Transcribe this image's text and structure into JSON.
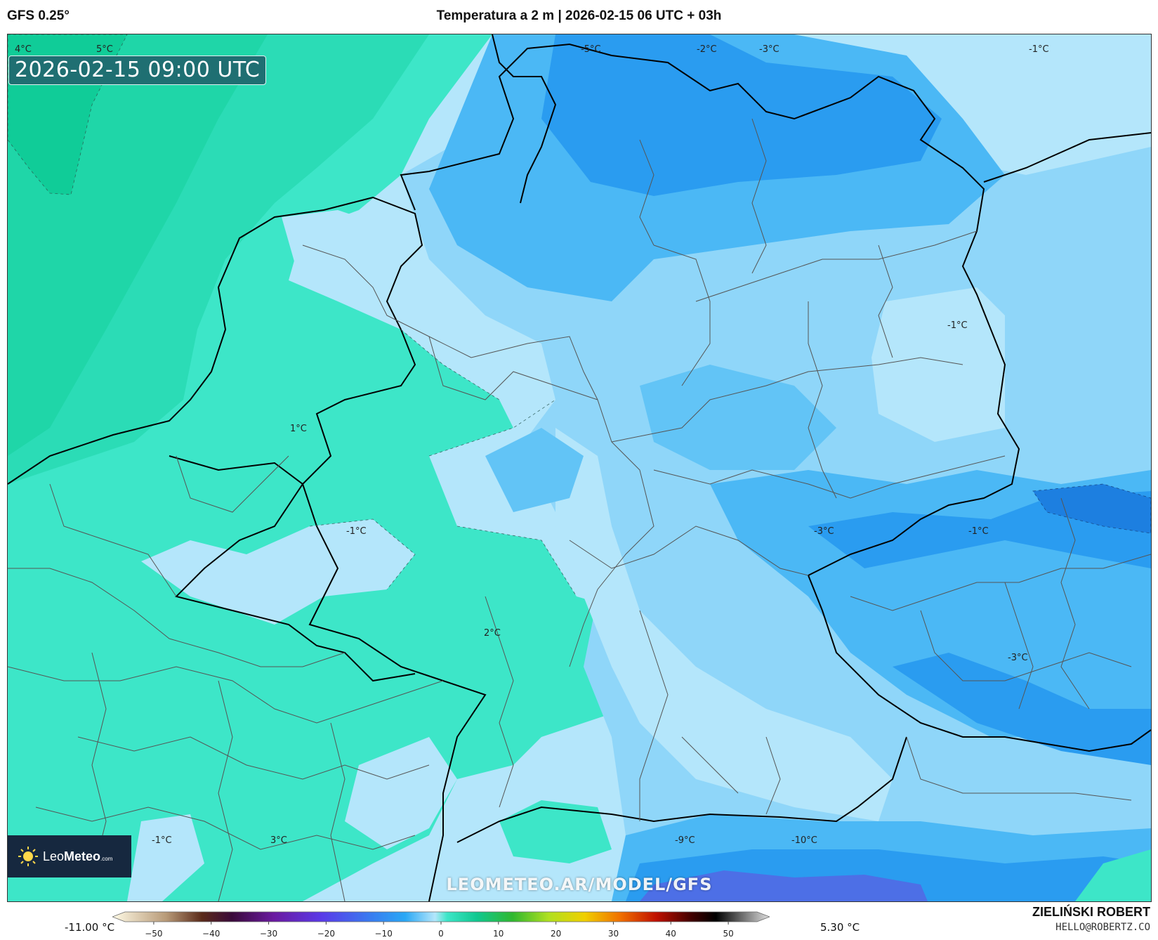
{
  "header": {
    "model": "GFS 0.25°",
    "title": "Temperatura a 2 m | 2026-02-15 06 UTC + 03h"
  },
  "map": {
    "valid_time": "2026-02-15 09:00 UTC",
    "watermark": "LEOMETEO.AR/MODEL/GFS",
    "logo": {
      "name_light": "Leo",
      "name_bold": "Meteo",
      "suffix": ".com",
      "icon": "sun-icon"
    },
    "temperature_labels": [
      {
        "text": "4°C"
      },
      {
        "text": "5°C"
      },
      {
        "text": "-5°C"
      },
      {
        "text": "-2°C"
      },
      {
        "text": "-3°C"
      },
      {
        "text": "-1°C"
      },
      {
        "text": "-1°C"
      },
      {
        "text": "1°C"
      },
      {
        "text": "-1°C"
      },
      {
        "text": "-3°C"
      },
      {
        "text": "-1°C"
      },
      {
        "text": "2°C"
      },
      {
        "text": "-3°C"
      },
      {
        "text": "-1°C"
      },
      {
        "text": "3°C"
      },
      {
        "text": "-9°C"
      },
      {
        "text": "-10°C"
      }
    ],
    "colors": {
      "sea_green": "#1fd6a8",
      "land_green": "#3de6c8",
      "pale_blue": "#b4e6fb",
      "light_blue": "#7fd0f8",
      "mid_blue": "#4bb8f5",
      "deep_blue": "#2a9cf0",
      "violet": "#5a6ee8"
    }
  },
  "colorbar": {
    "min_label": "-11.00 °C",
    "max_label": "5.30 °C",
    "ticks": [
      "−50",
      "−40",
      "−30",
      "−20",
      "−10",
      "0",
      "10",
      "20",
      "30",
      "40",
      "50"
    ],
    "range": [
      -55,
      55
    ],
    "stops": [
      {
        "t": -55,
        "color": "#fffbe6"
      },
      {
        "t": -46,
        "color": "#b89a78"
      },
      {
        "t": -40,
        "color": "#5a2a1a"
      },
      {
        "t": -35,
        "color": "#3a0a3a"
      },
      {
        "t": -28,
        "color": "#6a1aa0"
      },
      {
        "t": -20,
        "color": "#5a3ae8"
      },
      {
        "t": -12,
        "color": "#3a7af0"
      },
      {
        "t": -6,
        "color": "#2aa8f5"
      },
      {
        "t": -1,
        "color": "#b4e6fb"
      },
      {
        "t": 1,
        "color": "#3de6c8"
      },
      {
        "t": 6,
        "color": "#10c890"
      },
      {
        "t": 12,
        "color": "#30b830"
      },
      {
        "t": 18,
        "color": "#b0e020"
      },
      {
        "t": 24,
        "color": "#f0d000"
      },
      {
        "t": 30,
        "color": "#f07000"
      },
      {
        "t": 36,
        "color": "#c01000"
      },
      {
        "t": 42,
        "color": "#400000"
      },
      {
        "t": 46,
        "color": "#000000"
      },
      {
        "t": 55,
        "color": "#e0e0e0"
      }
    ]
  },
  "credit": {
    "name": "ZIELIŃSKI ROBERT",
    "email": "HELLO@ROBERTZ.CO"
  }
}
